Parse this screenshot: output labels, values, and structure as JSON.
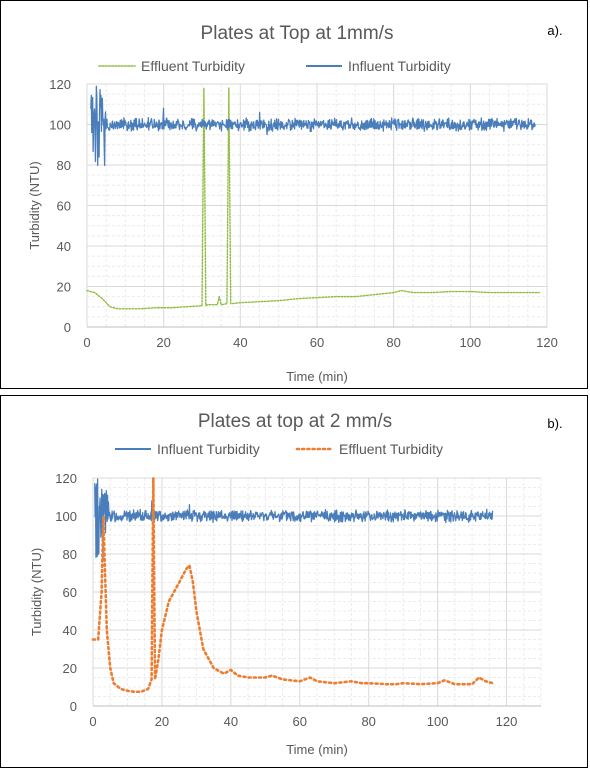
{
  "chart_data": [
    {
      "panel_label": "a).",
      "type": "line",
      "title": "Plates at Top at 1mm/s",
      "xlabel": "Time (min)",
      "ylabel": "Turbidity (NTU)",
      "xlim": [
        0,
        120
      ],
      "ylim": [
        0,
        120
      ],
      "xticks": [
        "0",
        "20",
        "40",
        "60",
        "80",
        "100",
        "120"
      ],
      "yticks": [
        "0",
        "20",
        "40",
        "60",
        "80",
        "100",
        "120"
      ],
      "grid": true,
      "legend_position": "top",
      "series": [
        {
          "name": "Effluent Turbidity",
          "style": "dotted",
          "color": "#8fbc3f",
          "x": [
            0,
            2,
            4,
            5,
            6,
            8,
            10,
            14,
            18,
            22,
            26,
            30,
            30.5,
            31,
            31.5,
            34,
            34.5,
            35,
            36.5,
            37,
            37.5,
            40,
            45,
            50,
            55,
            60,
            65,
            70,
            75,
            80,
            82,
            85,
            90,
            95,
            100,
            105,
            110,
            115,
            118
          ],
          "y": [
            18,
            17,
            14,
            12,
            10,
            9,
            9,
            9,
            9.5,
            9.5,
            10,
            10.5,
            118,
            10.5,
            11,
            11,
            15,
            11,
            11.5,
            118,
            11.5,
            12,
            12.5,
            13,
            14,
            14.5,
            15,
            15,
            16,
            17,
            18,
            17,
            17,
            17.5,
            17.5,
            17,
            17,
            17,
            17
          ]
        },
        {
          "name": "Influent Turbidity",
          "style": "solid",
          "color": "#4a7ebb",
          "x_start": 1,
          "x_end": 117,
          "spike_end": 5,
          "baseline": 100,
          "noise": 2.5,
          "spike_range": [
            75,
            120
          ],
          "spikes": [
            {
              "x": 20,
              "y": 108
            },
            {
              "x": 45,
              "y": 106
            },
            {
              "x": 47,
              "y": 95
            }
          ]
        }
      ]
    },
    {
      "panel_label": "b).",
      "type": "line",
      "title": "Plates at top at 2 mm/s",
      "xlabel": "Time (min)",
      "ylabel": "Turbidity (NTU)",
      "xlim": [
        0,
        130
      ],
      "ylim": [
        0,
        120
      ],
      "xticks": [
        "0",
        "20",
        "40",
        "60",
        "80",
        "100",
        "120"
      ],
      "yticks": [
        "0",
        "20",
        "40",
        "60",
        "80",
        "100",
        "120"
      ],
      "grid": true,
      "legend_position": "top",
      "series": [
        {
          "name": "Influent Turbidity",
          "style": "solid",
          "color": "#4a7ebb",
          "x_start": 0.5,
          "x_end": 116,
          "spike_end": 4.5,
          "baseline": 100,
          "noise": 2.5,
          "spike_range": [
            76,
            120
          ],
          "spikes": [
            {
              "x": 17,
              "y": 108
            },
            {
              "x": 28,
              "y": 106
            }
          ]
        },
        {
          "name": "Effluent Turbidity",
          "style": "dotted",
          "color": "#ed7d31",
          "x": [
            0,
            1.5,
            2.5,
            3,
            3.5,
            4,
            5,
            6,
            8,
            10,
            12,
            14,
            16,
            17,
            17.5,
            18,
            19,
            20,
            22,
            25,
            27,
            28,
            29,
            30,
            32,
            35,
            38,
            40,
            42,
            45,
            50,
            52,
            55,
            60,
            63,
            65,
            70,
            75,
            78,
            80,
            85,
            88,
            90,
            95,
            100,
            102,
            105,
            110,
            112,
            114,
            116
          ],
          "y": [
            35,
            35,
            60,
            100,
            70,
            40,
            20,
            12,
            9,
            8,
            7.5,
            7.5,
            9,
            14,
            120,
            14,
            25,
            40,
            55,
            65,
            72,
            74,
            65,
            50,
            30,
            20,
            17,
            19,
            16,
            15,
            15,
            16,
            14,
            13,
            15,
            13,
            12,
            13,
            12,
            12,
            11.5,
            11.5,
            12,
            11.5,
            12,
            13.5,
            11.5,
            11.5,
            15,
            13,
            12
          ]
        }
      ]
    }
  ]
}
